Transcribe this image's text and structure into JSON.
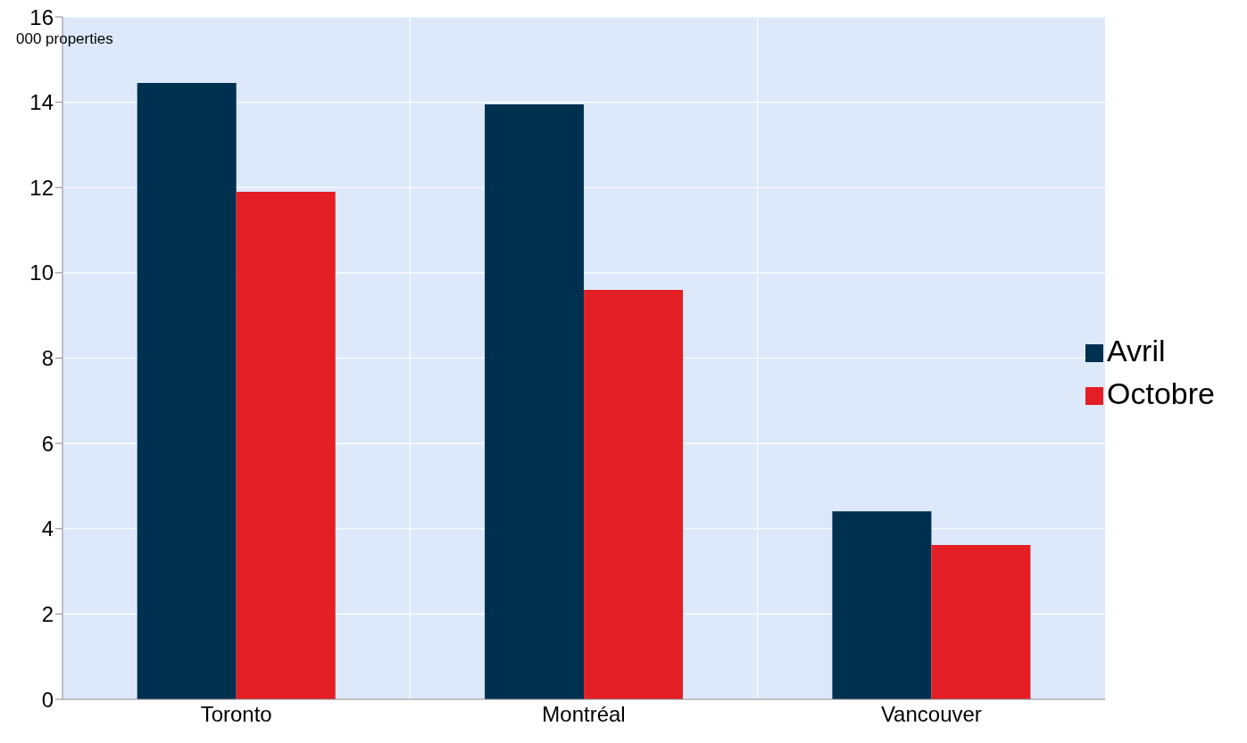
{
  "chart_data": {
    "type": "bar",
    "ylabel": "000 properties",
    "categories": [
      "Toronto",
      "Montréal",
      "Vancouver"
    ],
    "series": [
      {
        "name": "Avril",
        "color": "#003050",
        "values": [
          14.45,
          13.95,
          4.41
        ]
      },
      {
        "name": "Octobre",
        "color": "#e31e24",
        "values": [
          11.9,
          9.6,
          3.62
        ]
      }
    ],
    "ylim": [
      0,
      16
    ],
    "yticks": [
      0,
      2,
      4,
      6,
      8,
      10,
      12,
      14,
      16
    ],
    "grid": true,
    "legend": "right"
  }
}
